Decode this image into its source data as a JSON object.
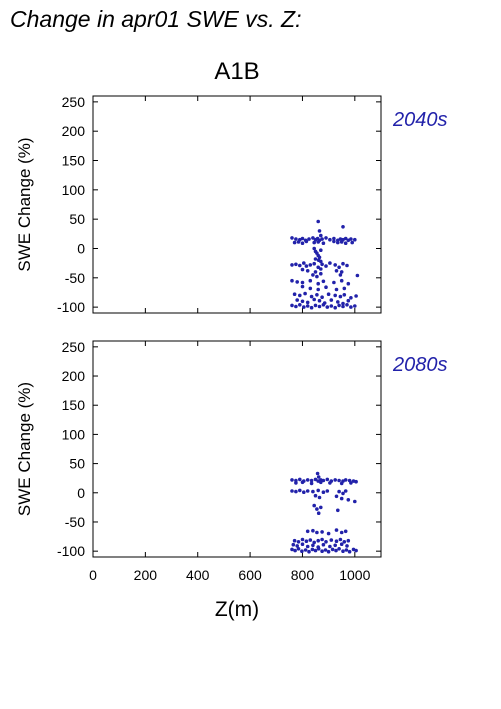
{
  "figure": {
    "title": "Change in apr01 SWE vs. Z:",
    "scenario": "A1B",
    "marker_color": "#2222aa"
  },
  "chart_data": [
    {
      "type": "scatter",
      "period_label": "2040s",
      "xlabel": "",
      "ylabel": "SWE Change (%)",
      "xlim": [
        0,
        1100
      ],
      "ylim": [
        -110,
        260
      ],
      "yticks": [
        "-100",
        "-50",
        "0",
        "50",
        "100",
        "150",
        "200",
        "250"
      ],
      "grid": false,
      "points": [
        [
          760,
          18
        ],
        [
          775,
          16
        ],
        [
          790,
          15
        ],
        [
          800,
          17
        ],
        [
          812,
          14
        ],
        [
          825,
          16
        ],
        [
          840,
          18
        ],
        [
          850,
          15
        ],
        [
          858,
          17
        ],
        [
          865,
          14
        ],
        [
          875,
          16
        ],
        [
          890,
          18
        ],
        [
          905,
          15
        ],
        [
          920,
          17
        ],
        [
          935,
          14
        ],
        [
          945,
          16
        ],
        [
          955,
          15
        ],
        [
          965,
          17
        ],
        [
          975,
          14
        ],
        [
          985,
          16
        ],
        [
          1000,
          15
        ],
        [
          770,
          10
        ],
        [
          785,
          11
        ],
        [
          800,
          9
        ],
        [
          815,
          12
        ],
        [
          845,
          10
        ],
        [
          860,
          11
        ],
        [
          880,
          9
        ],
        [
          920,
          12
        ],
        [
          935,
          10
        ],
        [
          950,
          11
        ],
        [
          965,
          9
        ],
        [
          990,
          10
        ],
        [
          860,
          46
        ],
        [
          955,
          37
        ],
        [
          865,
          30
        ],
        [
          870,
          22
        ],
        [
          845,
          0
        ],
        [
          850,
          -5
        ],
        [
          855,
          -8
        ],
        [
          860,
          -12
        ],
        [
          865,
          -15
        ],
        [
          870,
          -3
        ],
        [
          850,
          -18
        ],
        [
          862,
          -20
        ],
        [
          870,
          -22
        ],
        [
          760,
          -28
        ],
        [
          775,
          -27
        ],
        [
          790,
          -29
        ],
        [
          805,
          -25
        ],
        [
          815,
          -30
        ],
        [
          830,
          -28
        ],
        [
          845,
          -26
        ],
        [
          860,
          -32
        ],
        [
          875,
          -27
        ],
        [
          890,
          -30
        ],
        [
          905,
          -25
        ],
        [
          925,
          -28
        ],
        [
          940,
          -32
        ],
        [
          955,
          -26
        ],
        [
          970,
          -29
        ],
        [
          800,
          -36
        ],
        [
          820,
          -38
        ],
        [
          850,
          -40
        ],
        [
          870,
          -35
        ],
        [
          930,
          -38
        ],
        [
          950,
          -40
        ],
        [
          840,
          -45
        ],
        [
          855,
          -48
        ],
        [
          870,
          -43
        ],
        [
          1010,
          -46
        ],
        [
          945,
          -45
        ],
        [
          760,
          -55
        ],
        [
          780,
          -57
        ],
        [
          800,
          -58
        ],
        [
          830,
          -55
        ],
        [
          860,
          -60
        ],
        [
          880,
          -56
        ],
        [
          920,
          -58
        ],
        [
          950,
          -55
        ],
        [
          975,
          -60
        ],
        [
          800,
          -65
        ],
        [
          830,
          -68
        ],
        [
          860,
          -70
        ],
        [
          890,
          -66
        ],
        [
          930,
          -70
        ],
        [
          960,
          -68
        ],
        [
          770,
          -78
        ],
        [
          790,
          -80
        ],
        [
          810,
          -77
        ],
        [
          835,
          -82
        ],
        [
          855,
          -79
        ],
        [
          875,
          -83
        ],
        [
          900,
          -78
        ],
        [
          925,
          -80
        ],
        [
          945,
          -82
        ],
        [
          960,
          -79
        ],
        [
          985,
          -84
        ],
        [
          1005,
          -81
        ],
        [
          780,
          -88
        ],
        [
          800,
          -90
        ],
        [
          820,
          -92
        ],
        [
          845,
          -87
        ],
        [
          865,
          -89
        ],
        [
          885,
          -93
        ],
        [
          910,
          -88
        ],
        [
          935,
          -91
        ],
        [
          955,
          -94
        ],
        [
          975,
          -89
        ],
        [
          760,
          -97
        ],
        [
          775,
          -99
        ],
        [
          790,
          -96
        ],
        [
          805,
          -100
        ],
        [
          820,
          -98
        ],
        [
          835,
          -101
        ],
        [
          850,
          -97
        ],
        [
          865,
          -99
        ],
        [
          880,
          -96
        ],
        [
          895,
          -100
        ],
        [
          910,
          -98
        ],
        [
          925,
          -101
        ],
        [
          940,
          -97
        ],
        [
          955,
          -99
        ],
        [
          970,
          -96
        ],
        [
          985,
          -100
        ],
        [
          1000,
          -98
        ]
      ]
    },
    {
      "type": "scatter",
      "period_label": "2080s",
      "xlabel": "Z(m)",
      "ylabel": "SWE Change (%)",
      "xlim": [
        0,
        1100
      ],
      "ylim": [
        -110,
        260
      ],
      "yticks": [
        "-100",
        "-50",
        "0",
        "50",
        "100",
        "150",
        "200",
        "250"
      ],
      "xticks": [
        "0",
        "200",
        "400",
        "600",
        "800",
        "1000"
      ],
      "grid": false,
      "points": [
        [
          760,
          22
        ],
        [
          775,
          21
        ],
        [
          790,
          23
        ],
        [
          805,
          20
        ],
        [
          820,
          22
        ],
        [
          835,
          21
        ],
        [
          850,
          23
        ],
        [
          860,
          20
        ],
        [
          870,
          22
        ],
        [
          880,
          21
        ],
        [
          895,
          23
        ],
        [
          910,
          20
        ],
        [
          925,
          22
        ],
        [
          940,
          21
        ],
        [
          955,
          20
        ],
        [
          965,
          22
        ],
        [
          980,
          21
        ],
        [
          995,
          20
        ],
        [
          1005,
          19
        ],
        [
          775,
          17
        ],
        [
          800,
          18
        ],
        [
          835,
          16
        ],
        [
          870,
          18
        ],
        [
          905,
          17
        ],
        [
          950,
          16
        ],
        [
          985,
          17
        ],
        [
          858,
          33
        ],
        [
          862,
          27
        ],
        [
          760,
          3
        ],
        [
          775,
          2
        ],
        [
          790,
          4
        ],
        [
          805,
          1
        ],
        [
          820,
          3
        ],
        [
          840,
          2
        ],
        [
          860,
          4
        ],
        [
          880,
          1
        ],
        [
          895,
          3
        ],
        [
          940,
          2
        ],
        [
          955,
          -1
        ],
        [
          965,
          3
        ],
        [
          850,
          -5
        ],
        [
          865,
          -8
        ],
        [
          930,
          -6
        ],
        [
          950,
          -10
        ],
        [
          975,
          -12
        ],
        [
          1000,
          -15
        ],
        [
          845,
          -22
        ],
        [
          855,
          -28
        ],
        [
          862,
          -35
        ],
        [
          870,
          -25
        ],
        [
          935,
          -30
        ],
        [
          820,
          -66
        ],
        [
          840,
          -65
        ],
        [
          855,
          -68
        ],
        [
          875,
          -67
        ],
        [
          900,
          -70
        ],
        [
          930,
          -64
        ],
        [
          950,
          -68
        ],
        [
          965,
          -66
        ],
        [
          770,
          -82
        ],
        [
          785,
          -84
        ],
        [
          800,
          -80
        ],
        [
          815,
          -83
        ],
        [
          830,
          -81
        ],
        [
          845,
          -85
        ],
        [
          860,
          -82
        ],
        [
          875,
          -80
        ],
        [
          890,
          -84
        ],
        [
          910,
          -81
        ],
        [
          930,
          -83
        ],
        [
          945,
          -80
        ],
        [
          960,
          -84
        ],
        [
          975,
          -82
        ],
        [
          765,
          -89
        ],
        [
          780,
          -91
        ],
        [
          800,
          -88
        ],
        [
          820,
          -92
        ],
        [
          840,
          -90
        ],
        [
          860,
          -93
        ],
        [
          880,
          -89
        ],
        [
          905,
          -92
        ],
        [
          925,
          -90
        ],
        [
          950,
          -88
        ],
        [
          970,
          -91
        ],
        [
          760,
          -97
        ],
        [
          772,
          -99
        ],
        [
          785,
          -96
        ],
        [
          798,
          -100
        ],
        [
          812,
          -98
        ],
        [
          825,
          -101
        ],
        [
          838,
          -97
        ],
        [
          850,
          -99
        ],
        [
          862,
          -96
        ],
        [
          875,
          -100
        ],
        [
          888,
          -98
        ],
        [
          900,
          -101
        ],
        [
          915,
          -97
        ],
        [
          928,
          -99
        ],
        [
          940,
          -96
        ],
        [
          955,
          -100
        ],
        [
          968,
          -98
        ],
        [
          980,
          -101
        ],
        [
          995,
          -97
        ],
        [
          1005,
          -99
        ]
      ]
    }
  ]
}
